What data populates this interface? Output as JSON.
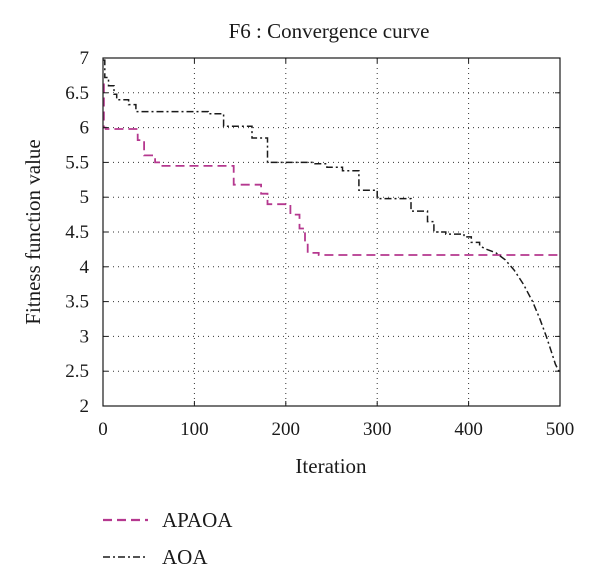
{
  "chart_data": {
    "type": "line",
    "title": "F6 : Convergence curve",
    "xlabel": "Iteration",
    "ylabel": "Fitness function value",
    "xlim": [
      0,
      500
    ],
    "ylim": [
      2,
      7
    ],
    "xticks": [
      0,
      100,
      200,
      300,
      400,
      500
    ],
    "yticks": [
      2,
      2.5,
      3,
      3.5,
      4,
      4.5,
      5,
      5.5,
      6,
      6.5,
      7
    ],
    "ytick_labels": [
      "2",
      "2.5",
      "3",
      "3.5",
      "4",
      "4.5",
      "5",
      "5.5",
      "6",
      "6.5",
      "7"
    ],
    "grid": true,
    "legend_position": "bottom",
    "series": [
      {
        "name": "APAOA",
        "color": "#b5388f",
        "line_style": "dashed",
        "points": [
          [
            0,
            6.62
          ],
          [
            1,
            6.62
          ],
          [
            1,
            6.0
          ],
          [
            3,
            6.0
          ],
          [
            3,
            5.98
          ],
          [
            38,
            5.98
          ],
          [
            38,
            5.82
          ],
          [
            45,
            5.82
          ],
          [
            45,
            5.6
          ],
          [
            57,
            5.6
          ],
          [
            57,
            5.5
          ],
          [
            63,
            5.5
          ],
          [
            63,
            5.45
          ],
          [
            143,
            5.45
          ],
          [
            143,
            5.18
          ],
          [
            173,
            5.18
          ],
          [
            173,
            5.05
          ],
          [
            180,
            5.05
          ],
          [
            180,
            4.9
          ],
          [
            205,
            4.9
          ],
          [
            205,
            4.75
          ],
          [
            215,
            4.75
          ],
          [
            215,
            4.55
          ],
          [
            221,
            4.55
          ],
          [
            221,
            4.35
          ],
          [
            224,
            4.35
          ],
          [
            224,
            4.2
          ],
          [
            236,
            4.2
          ],
          [
            236,
            4.17
          ],
          [
            500,
            4.17
          ]
        ]
      },
      {
        "name": "AOA",
        "color": "#1a1a1a",
        "line_style": "dashdot",
        "points": [
          [
            0,
            6.97
          ],
          [
            2,
            6.97
          ],
          [
            2,
            6.72
          ],
          [
            6,
            6.72
          ],
          [
            6,
            6.6
          ],
          [
            12,
            6.6
          ],
          [
            12,
            6.48
          ],
          [
            15,
            6.48
          ],
          [
            15,
            6.4
          ],
          [
            28,
            6.4
          ],
          [
            28,
            6.33
          ],
          [
            36,
            6.33
          ],
          [
            36,
            6.23
          ],
          [
            115,
            6.23
          ],
          [
            115,
            6.2
          ],
          [
            132,
            6.2
          ],
          [
            132,
            6.02
          ],
          [
            163,
            6.02
          ],
          [
            163,
            5.85
          ],
          [
            180,
            5.85
          ],
          [
            180,
            5.5
          ],
          [
            232,
            5.5
          ],
          [
            232,
            5.48
          ],
          [
            245,
            5.48
          ],
          [
            245,
            5.43
          ],
          [
            262,
            5.43
          ],
          [
            262,
            5.38
          ],
          [
            280,
            5.38
          ],
          [
            280,
            5.1
          ],
          [
            300,
            5.1
          ],
          [
            300,
            4.98
          ],
          [
            337,
            4.98
          ],
          [
            337,
            4.8
          ],
          [
            355,
            4.8
          ],
          [
            355,
            4.65
          ],
          [
            362,
            4.65
          ],
          [
            362,
            4.5
          ],
          [
            375,
            4.5
          ],
          [
            375,
            4.47
          ],
          [
            395,
            4.47
          ],
          [
            395,
            4.43
          ],
          [
            403,
            4.43
          ],
          [
            403,
            4.35
          ],
          [
            412,
            4.35
          ],
          [
            412,
            4.3
          ],
          [
            420,
            4.25
          ],
          [
            430,
            4.2
          ],
          [
            440,
            4.1
          ],
          [
            450,
            3.95
          ],
          [
            460,
            3.75
          ],
          [
            470,
            3.5
          ],
          [
            478,
            3.25
          ],
          [
            485,
            3.0
          ],
          [
            490,
            2.8
          ],
          [
            495,
            2.6
          ],
          [
            500,
            2.47
          ]
        ]
      }
    ]
  }
}
